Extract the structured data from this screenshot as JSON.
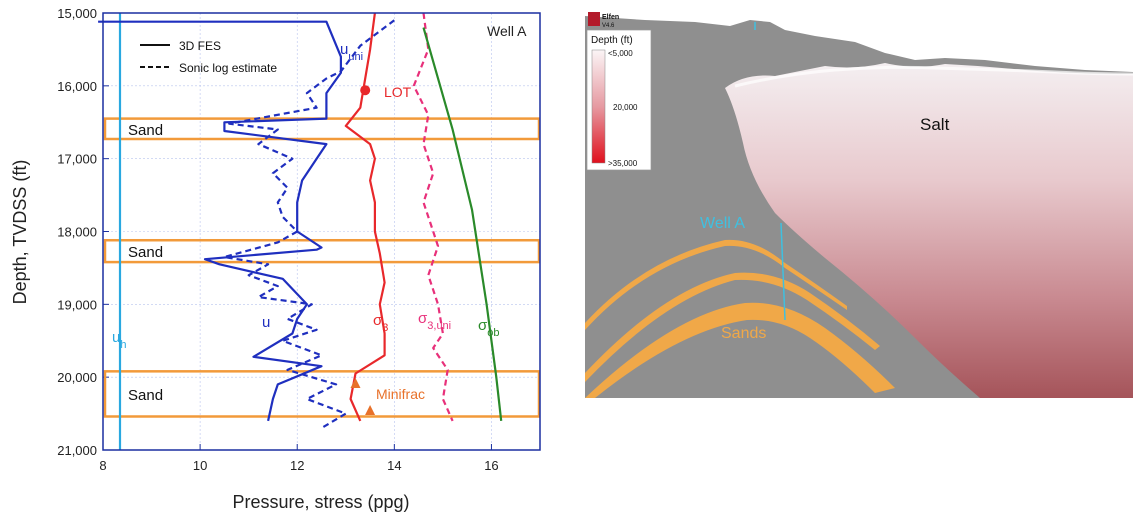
{
  "chart_data": {
    "type": "line",
    "xlabel": "Pressure, stress (ppg)",
    "ylabel": "Depth, TVDSS (ft)",
    "xlim": [
      8,
      17
    ],
    "ylim": [
      15000,
      21000
    ],
    "y_inverted": true,
    "x_ticks": [
      "8",
      "10",
      "12",
      "14",
      "16"
    ],
    "y_ticks": [
      "15,000",
      "16,000",
      "17,000",
      "18,000",
      "19,000",
      "20,000",
      "21,000"
    ],
    "well_label": "Well A",
    "legend": {
      "position": "top-left",
      "solid_label": "3D FES",
      "dashed_label": "Sonic log estimate"
    },
    "series": [
      {
        "name": "u_h",
        "color": "#29a8e0",
        "style": "solid",
        "points": [
          [
            8.35,
            15000
          ],
          [
            8.35,
            21000
          ]
        ]
      },
      {
        "name": "u",
        "color": "#1f2fbf",
        "style": "solid",
        "points": [
          [
            7.9,
            15120
          ],
          [
            12.6,
            15120
          ],
          [
            12.9,
            15600
          ],
          [
            12.9,
            15820
          ],
          [
            12.6,
            16100
          ],
          [
            12.6,
            16450
          ],
          [
            10.5,
            16500
          ],
          [
            10.5,
            16620
          ],
          [
            12.6,
            16800
          ],
          [
            12.4,
            17000
          ],
          [
            12.1,
            17300
          ],
          [
            12.0,
            17600
          ],
          [
            12.0,
            18000
          ],
          [
            12.5,
            18220
          ],
          [
            12.4,
            18250
          ],
          [
            10.1,
            18380
          ],
          [
            10.4,
            18450
          ],
          [
            11.7,
            18650
          ],
          [
            12.2,
            19000
          ],
          [
            12.0,
            19200
          ],
          [
            11.9,
            19400
          ],
          [
            11.1,
            19720
          ],
          [
            12.5,
            19850
          ],
          [
            11.6,
            20100
          ],
          [
            11.5,
            20300
          ],
          [
            11.4,
            20600
          ]
        ]
      },
      {
        "name": "u_uni",
        "color": "#1f2fbf",
        "style": "dashed",
        "points": [
          [
            14.0,
            15100
          ],
          [
            13.3,
            15450
          ],
          [
            12.9,
            15800
          ],
          [
            12.6,
            15900
          ],
          [
            12.2,
            16100
          ],
          [
            12.4,
            16300
          ],
          [
            10.6,
            16520
          ],
          [
            11.6,
            16600
          ],
          [
            11.2,
            16800
          ],
          [
            11.9,
            17000
          ],
          [
            11.5,
            17200
          ],
          [
            11.8,
            17400
          ],
          [
            11.6,
            17600
          ],
          [
            11.7,
            17800
          ],
          [
            12.0,
            18000
          ],
          [
            11.6,
            18150
          ],
          [
            10.5,
            18350
          ],
          [
            11.4,
            18450
          ],
          [
            11.0,
            18600
          ],
          [
            11.6,
            18750
          ],
          [
            11.2,
            18900
          ],
          [
            12.3,
            19000
          ],
          [
            11.8,
            19200
          ],
          [
            12.4,
            19350
          ],
          [
            11.7,
            19500
          ],
          [
            12.5,
            19700
          ],
          [
            11.8,
            19900
          ],
          [
            12.8,
            20100
          ],
          [
            12.2,
            20300
          ],
          [
            13.0,
            20500
          ],
          [
            12.5,
            20700
          ]
        ]
      },
      {
        "name": "sigma_3",
        "color": "#e8282b",
        "style": "solid",
        "points": [
          [
            13.6,
            15000
          ],
          [
            13.5,
            15500
          ],
          [
            13.3,
            16300
          ],
          [
            13.0,
            16550
          ],
          [
            13.5,
            16800
          ],
          [
            13.6,
            17000
          ],
          [
            13.5,
            17300
          ],
          [
            13.6,
            17600
          ],
          [
            13.6,
            18000
          ],
          [
            13.7,
            18300
          ],
          [
            13.8,
            18700
          ],
          [
            13.7,
            19000
          ],
          [
            13.8,
            19400
          ],
          [
            13.8,
            19700
          ],
          [
            13.2,
            19950
          ],
          [
            13.1,
            20300
          ],
          [
            13.3,
            20600
          ]
        ]
      },
      {
        "name": "sigma_3,uni",
        "color": "#e8307a",
        "style": "dashed",
        "points": [
          [
            14.6,
            15000
          ],
          [
            14.7,
            15500
          ],
          [
            14.4,
            16000
          ],
          [
            14.7,
            16400
          ],
          [
            14.6,
            16800
          ],
          [
            14.8,
            17200
          ],
          [
            14.6,
            17600
          ],
          [
            14.8,
            18000
          ],
          [
            14.9,
            18200
          ],
          [
            14.7,
            18600
          ],
          [
            14.9,
            19000
          ],
          [
            15.0,
            19400
          ],
          [
            14.8,
            19600
          ],
          [
            15.1,
            19900
          ],
          [
            15.0,
            20300
          ],
          [
            15.2,
            20600
          ]
        ]
      },
      {
        "name": "sigma_ob",
        "color": "#2a8a2a",
        "style": "solid",
        "points": [
          [
            14.6,
            15200
          ],
          [
            15.2,
            16600
          ],
          [
            15.6,
            17700
          ],
          [
            15.9,
            19000
          ],
          [
            16.1,
            20000
          ],
          [
            16.2,
            20600
          ]
        ]
      }
    ],
    "series_labels": [
      {
        "main": "u",
        "sub": "uni",
        "color": "#1f2fbf"
      },
      {
        "main": "LOT",
        "sub": "",
        "color": "#e8282b"
      },
      {
        "main": "u",
        "sub": "",
        "color": "#1f2fbf"
      },
      {
        "main": "σ",
        "sub": "3",
        "color": "#e8282b"
      },
      {
        "main": "σ",
        "sub": "3,uni",
        "color": "#e8307a"
      },
      {
        "main": "σ",
        "sub": "ob",
        "color": "#2a8a2a"
      },
      {
        "main": "u",
        "sub": "h",
        "color": "#29a8e0"
      },
      {
        "main": "Minifrac",
        "sub": "",
        "color": "#e8712a"
      }
    ],
    "sand_intervals": [
      {
        "label": "Sand",
        "top": 16450,
        "bottom": 16730
      },
      {
        "label": "Sand",
        "top": 18120,
        "bottom": 18420
      },
      {
        "label": "Sand",
        "top": 19920,
        "bottom": 20540
      }
    ],
    "lot": {
      "x": 13.4,
      "y": 16060,
      "color": "#e8282b"
    },
    "minifrac_points": [
      [
        13.2,
        20080
      ],
      [
        13.5,
        20450
      ]
    ],
    "colors": {
      "sand_box": "#f29a3a",
      "frame": "#1a2fa0",
      "grid": "#b8c4ee"
    }
  },
  "model": {
    "logo_text": "Elfen",
    "logo_version": "V4.6",
    "legend_title": "Depth (ft)",
    "legend_ticks": [
      "<5,000",
      "20,000",
      ">35,000"
    ],
    "salt_label": "Salt",
    "well_label": "Well A",
    "sands_label": "Sands",
    "colors": {
      "rock": "#8f8f8f",
      "salt_top": "#f3eef0",
      "salt_bottom": "#a5545a",
      "sands": "#f0a848",
      "well": "#3fc0e0"
    }
  }
}
